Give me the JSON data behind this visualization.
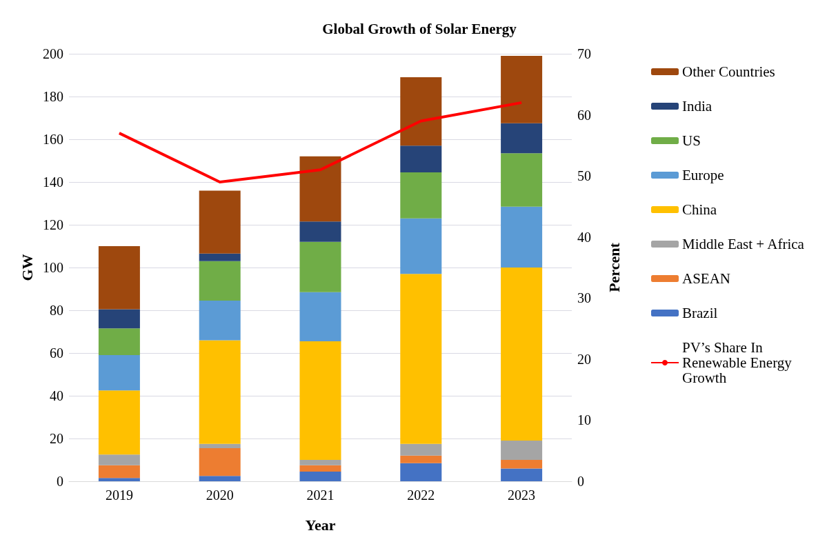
{
  "chart_data": {
    "type": "bar",
    "title": "Global Growth of Solar Energy",
    "xlabel": "Year",
    "ylabel": "GW",
    "y2label": "Percent",
    "categories": [
      "2019",
      "2020",
      "2021",
      "2022",
      "2023"
    ],
    "stacked": true,
    "series": [
      {
        "name": "Brazil",
        "color": "#4472c4",
        "values": [
          1.5,
          2.5,
          4.5,
          8.5,
          6
        ]
      },
      {
        "name": "ASEAN",
        "color": "#ed7d31",
        "values": [
          6,
          13,
          3,
          3.5,
          4
        ]
      },
      {
        "name": "Middle East + Africa",
        "color": "#a5a5a5",
        "values": [
          5,
          2,
          2.5,
          5.5,
          9
        ]
      },
      {
        "name": "China",
        "color": "#ffc000",
        "values": [
          30,
          48.5,
          55.5,
          79.5,
          81
        ]
      },
      {
        "name": "Europe",
        "color": "#5b9bd5",
        "values": [
          16.5,
          18.5,
          23,
          26,
          28.5
        ]
      },
      {
        "name": "US",
        "color": "#70ad47",
        "values": [
          12.5,
          18.5,
          23.5,
          21.5,
          25
        ]
      },
      {
        "name": "India",
        "color": "#264478",
        "values": [
          9,
          3.5,
          9.5,
          12.5,
          14
        ]
      },
      {
        "name": "Other Countries",
        "color": "#9e480e",
        "values": [
          29.5,
          29.5,
          30.5,
          32,
          31.5
        ]
      },
      {
        "name": "PV’s Share In Renewable Energy Growth",
        "type": "line",
        "axis": "y2",
        "color": "#ff0000",
        "values": [
          57,
          49,
          51,
          59,
          62
        ]
      }
    ],
    "ylim": [
      0,
      200
    ],
    "yticks": [
      0,
      20,
      40,
      60,
      80,
      100,
      120,
      140,
      160,
      180,
      200
    ],
    "y2lim": [
      0,
      70
    ],
    "y2ticks": [
      0,
      10,
      20,
      30,
      40,
      50,
      60,
      70
    ],
    "grid": "y",
    "legend": "right",
    "marker": "none"
  }
}
